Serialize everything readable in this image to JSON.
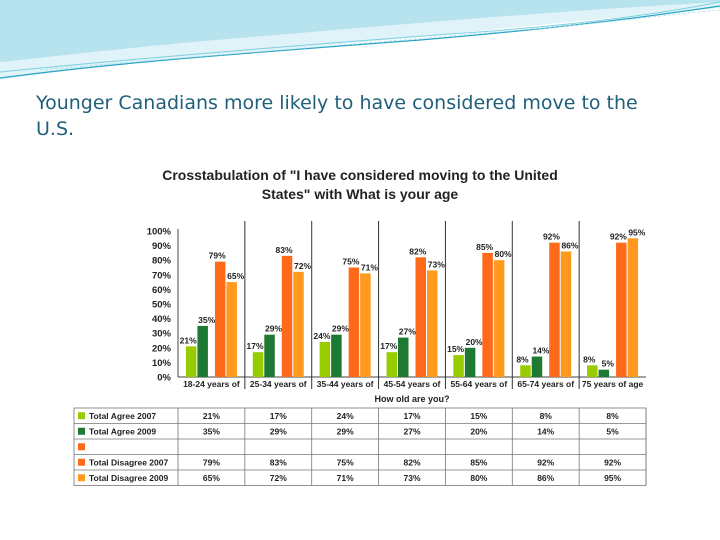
{
  "slide": {
    "title": "Younger Canadians more likely to have considered move to the U.S."
  },
  "colors": {
    "agree_2007": "#99cc00",
    "agree_2009": "#1e7a32",
    "disagree_2007": "#ff6a1a",
    "disagree_2009": "#ff9a1e",
    "title_text": "#1f5f7a",
    "banner": "#2aa4c4"
  },
  "chart_data": {
    "type": "bar",
    "title": "Crosstabulation of \"I have considered moving to the United States\" with What is your age",
    "title_lines": [
      "Crosstabulation of \"I have considered moving to the United",
      "States\" with What is your age"
    ],
    "xlabel": "How old are you?",
    "ylabel": "",
    "ylim": [
      0,
      100
    ],
    "y_ticks": [
      "0%",
      "10%",
      "20%",
      "30%",
      "40%",
      "50%",
      "60%",
      "70%",
      "80%",
      "90%",
      "100%"
    ],
    "categories": [
      "18-24 years of",
      "25-34 years of",
      "35-44 years of",
      "45-54 years of",
      "55-64 years of",
      "65-74 years of",
      "75 years of age"
    ],
    "series": [
      {
        "name": "Total Agree 2007",
        "values": [
          21,
          17,
          24,
          17,
          15,
          8,
          8
        ],
        "labels": [
          "21%",
          "17%",
          "24%",
          "17%",
          "15%",
          "8%",
          "8%"
        ]
      },
      {
        "name": "Total Agree 2009",
        "values": [
          35,
          29,
          29,
          27,
          20,
          14,
          5
        ],
        "labels": [
          "35%",
          "29%",
          "29%",
          "27%",
          "20%",
          "14%",
          "5%"
        ]
      },
      {
        "name": "Total Disagree 2007",
        "values": [
          79,
          83,
          75,
          82,
          85,
          92,
          92
        ],
        "labels": [
          "79%",
          "83%",
          "75%",
          "82%",
          "85%",
          "92%",
          "92%"
        ]
      },
      {
        "name": "Total Disagree 2009",
        "values": [
          65,
          72,
          71,
          73,
          80,
          86,
          95
        ],
        "labels": [
          "65%",
          "72%",
          "71%",
          "73%",
          "80%",
          "86%",
          "95%"
        ]
      }
    ],
    "table": {
      "rows": [
        {
          "name": "Total Agree 2007",
          "cells": [
            "21%",
            "17%",
            "24%",
            "17%",
            "15%",
            "8%",
            "8%"
          ]
        },
        {
          "name": "Total Agree 2009",
          "cells": [
            "35%",
            "29%",
            "29%",
            "27%",
            "20%",
            "14%",
            "5%"
          ]
        },
        {
          "name": "",
          "cells": []
        },
        {
          "name": "Total Disagree 2007",
          "cells": [
            "79%",
            "83%",
            "75%",
            "82%",
            "85%",
            "92%",
            "92%"
          ]
        },
        {
          "name": "Total Disagree 2009",
          "cells": [
            "65%",
            "72%",
            "71%",
            "73%",
            "80%",
            "86%",
            "95%"
          ]
        }
      ]
    },
    "grid": false,
    "legend": "bottom-table"
  }
}
